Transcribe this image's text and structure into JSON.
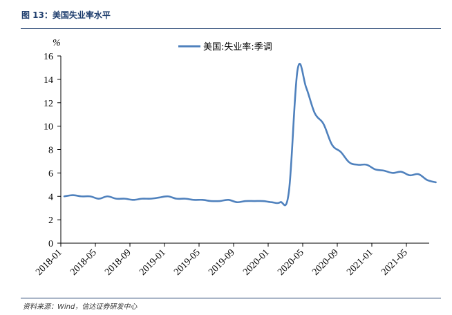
{
  "figure": {
    "title": "图 13：美国失业率水平",
    "source": "资料来源：Wind，信达证券研发中心"
  },
  "chart_data": {
    "type": "line",
    "ylabel": "%",
    "ylim": [
      0,
      16
    ],
    "yticks": [
      0,
      2,
      4,
      6,
      8,
      10,
      12,
      14,
      16
    ],
    "xticks": [
      "2018-01",
      "2018-05",
      "2018-09",
      "2019-01",
      "2019-05",
      "2019-09",
      "2020-01",
      "2020-05",
      "2020-09",
      "2021-01",
      "2021-05"
    ],
    "legend_position": "top-center",
    "grid": false,
    "colors": {
      "line": "#4f81bd",
      "axis": "#000000",
      "title": "#1f3e6e"
    },
    "x": [
      "2018-01",
      "2018-02",
      "2018-03",
      "2018-04",
      "2018-05",
      "2018-06",
      "2018-07",
      "2018-08",
      "2018-09",
      "2018-10",
      "2018-11",
      "2018-12",
      "2019-01",
      "2019-02",
      "2019-03",
      "2019-04",
      "2019-05",
      "2019-06",
      "2019-07",
      "2019-08",
      "2019-09",
      "2019-10",
      "2019-11",
      "2019-12",
      "2020-01",
      "2020-02",
      "2020-03",
      "2020-04",
      "2020-05",
      "2020-06",
      "2020-07",
      "2020-08",
      "2020-09",
      "2020-10",
      "2020-11",
      "2020-12",
      "2021-01",
      "2021-02",
      "2021-03",
      "2021-04",
      "2021-05",
      "2021-06",
      "2021-07",
      "2021-08"
    ],
    "series": [
      {
        "name": "美国:失业率:季调",
        "values": [
          4.0,
          4.1,
          4.0,
          4.0,
          3.8,
          4.0,
          3.8,
          3.8,
          3.7,
          3.8,
          3.8,
          3.9,
          4.0,
          3.8,
          3.8,
          3.7,
          3.7,
          3.6,
          3.6,
          3.7,
          3.5,
          3.6,
          3.6,
          3.6,
          3.5,
          3.5,
          4.4,
          14.8,
          13.3,
          11.1,
          10.2,
          8.4,
          7.8,
          6.9,
          6.7,
          6.7,
          6.3,
          6.2,
          6.0,
          6.1,
          5.8,
          5.9,
          5.4,
          5.2
        ]
      }
    ]
  }
}
